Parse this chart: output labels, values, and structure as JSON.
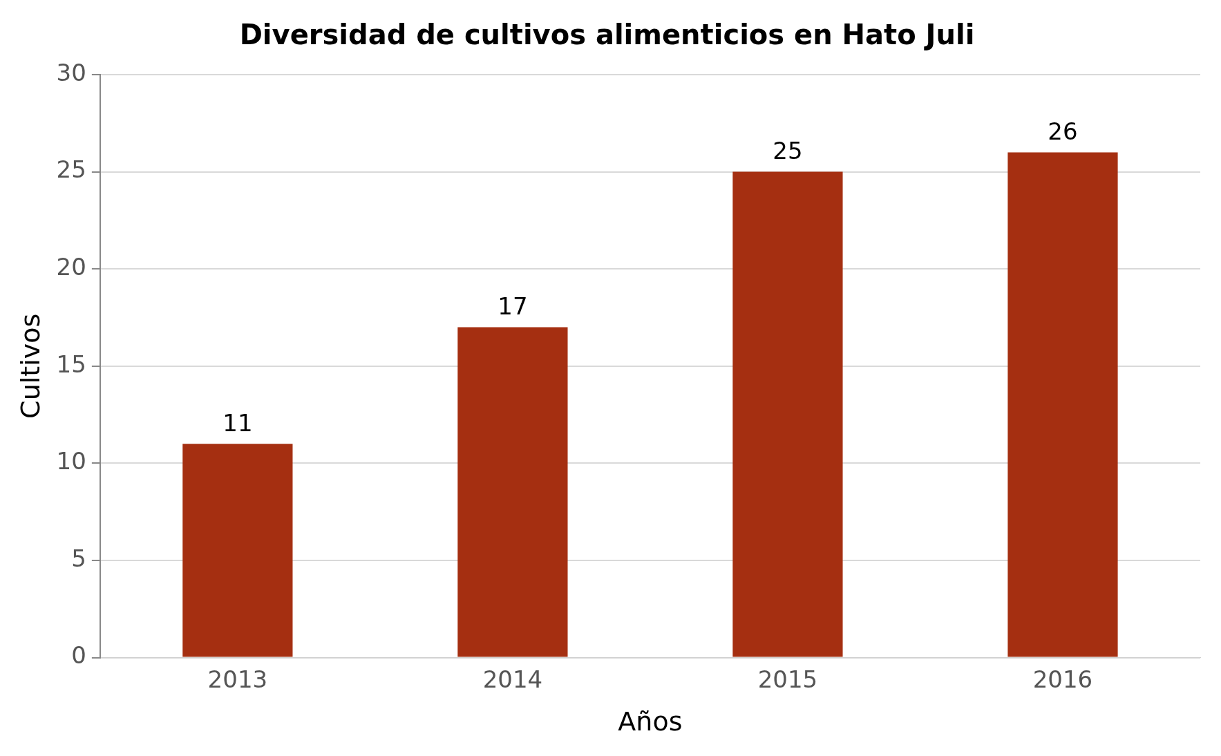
{
  "chart_data": {
    "type": "bar",
    "title": "Diversidad de cultivos alimenticios en Hato Juli",
    "xlabel": "Años",
    "ylabel": "Cultivos",
    "categories": [
      "2013",
      "2014",
      "2015",
      "2016"
    ],
    "values": [
      11,
      17,
      25,
      26
    ],
    "color": "#a52f11",
    "ylim": [
      0,
      30
    ],
    "yticks": [
      0,
      5,
      10,
      15,
      20,
      25,
      30
    ],
    "grid": "y",
    "data_labels": true,
    "legend": false
  }
}
